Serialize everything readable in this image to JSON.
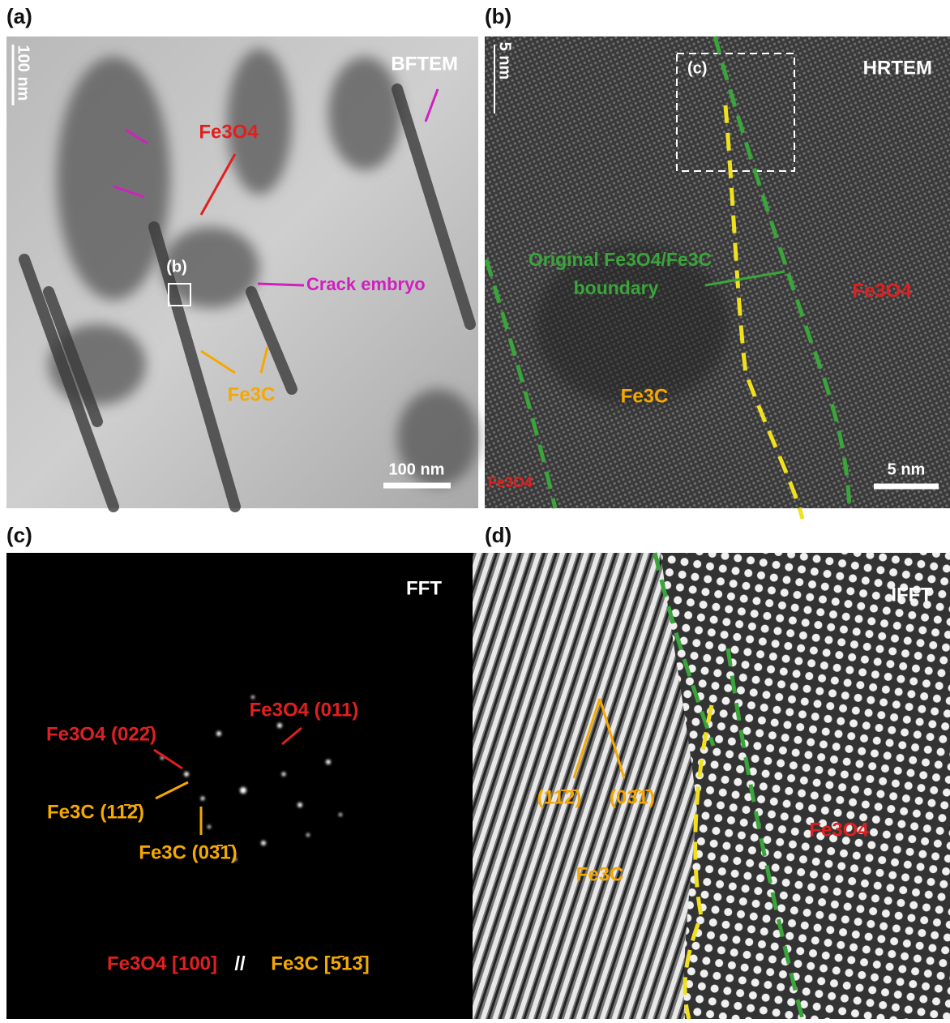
{
  "panels": [
    {
      "label": "(a)",
      "mode": "BFTEM",
      "scale_bar": "100 nm",
      "scale_side": "100 nm",
      "annotations": [
        "Fe3O4",
        "(b)",
        "Crack embryo",
        "Fe3C"
      ]
    },
    {
      "label": "(b)",
      "mode": "HRTEM",
      "scale_bar": "5 nm",
      "scale_side": "5 nm",
      "annotations": [
        "(c)",
        "Original Fe3O4/Fe3C",
        "boundary",
        "Fe3O4",
        "Fe3C",
        "Fe3O4"
      ]
    },
    {
      "label": "(c)",
      "mode": "FFT",
      "annotations": [
        "Fe3O4 (022̄)",
        "Fe3O4 (011)",
        "Fe3C (11̄2̄)",
        "Fe3C (03̄1̄)"
      ],
      "relation": [
        "Fe3O4 [100]",
        "//",
        "Fe3C [5̄13̄]"
      ]
    },
    {
      "label": "(d)",
      "mode": "IFFT",
      "annotations": [
        "(11̄2̄)",
        "(03̄1̄)",
        "Fe3C",
        "Fe3O4"
      ]
    }
  ]
}
